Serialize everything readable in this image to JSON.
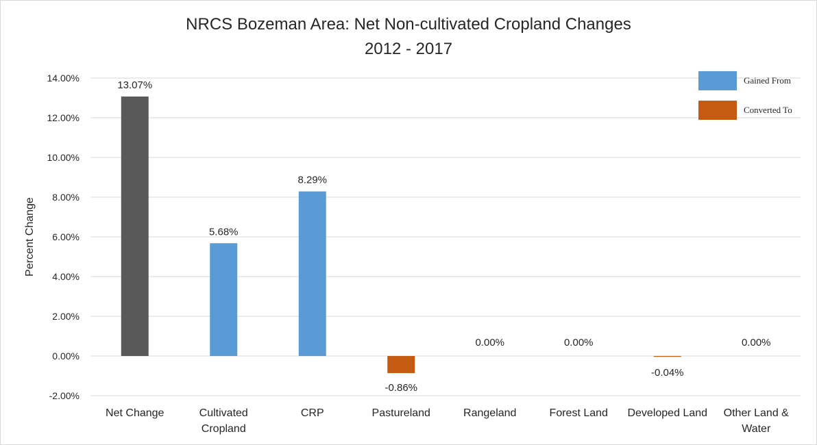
{
  "chart_data": {
    "type": "bar",
    "title": "NRCS Bozeman Area: Net Non-cultivated Cropland Changes",
    "subtitle": "2012 - 2017",
    "xlabel": "",
    "ylabel": "Percent Change",
    "ylim": [
      -2,
      14
    ],
    "ytick_step": 2,
    "yticks": [
      "-2.00%",
      "0.00%",
      "2.00%",
      "4.00%",
      "6.00%",
      "8.00%",
      "10.00%",
      "12.00%",
      "14.00%"
    ],
    "grid": true,
    "legend_position": "top-right",
    "categories": [
      [
        "Net Change"
      ],
      [
        "Cultivated",
        "Cropland"
      ],
      [
        "CRP"
      ],
      [
        "Pastureland"
      ],
      [
        "Rangeland"
      ],
      [
        "Forest Land"
      ],
      [
        "Developed Land"
      ],
      [
        "Other Land &",
        "Water"
      ]
    ],
    "values": [
      13.07,
      5.68,
      8.29,
      -0.86,
      0.0,
      0.0,
      -0.04,
      0.0
    ],
    "data_labels": [
      "13.07%",
      "5.68%",
      "8.29%",
      "-0.86%",
      "0.00%",
      "0.00%",
      "-0.04%",
      "0.00%"
    ],
    "bar_groups": [
      "net",
      "gained",
      "gained",
      "converted",
      "none",
      "none",
      "converted",
      "none"
    ],
    "colors": {
      "net": "#595959",
      "gained": "#5b9bd5",
      "converted": "#c55a11",
      "none": "#ffffff"
    },
    "legend": [
      {
        "label": "Gained From",
        "group": "gained"
      },
      {
        "label": "Converted To",
        "group": "converted"
      }
    ]
  }
}
